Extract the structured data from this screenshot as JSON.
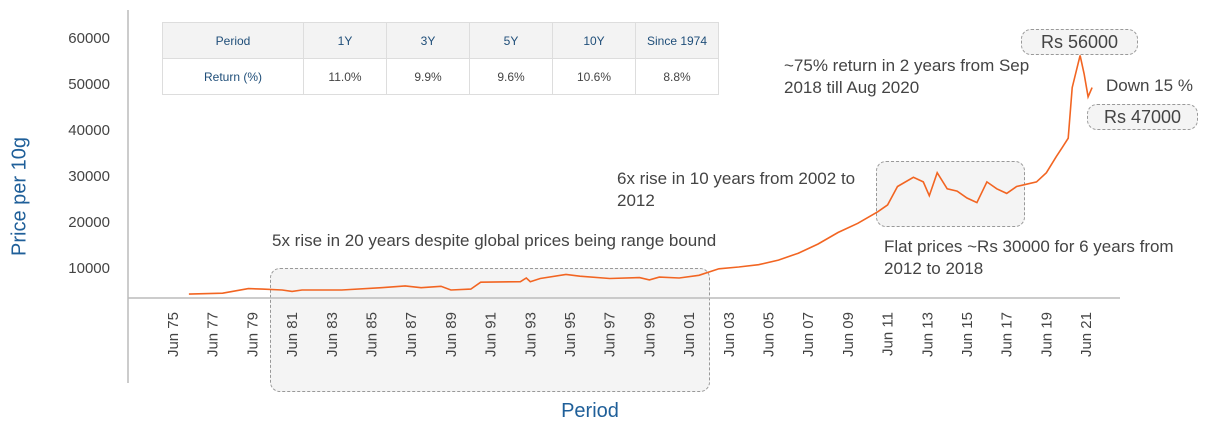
{
  "chart_data": {
    "type": "line",
    "title": "",
    "xlabel": "Period",
    "ylabel": "Price per 10g",
    "ylim": [
      3260,
      63000
    ],
    "yticks": [
      10000,
      20000,
      30000,
      40000,
      50000,
      60000
    ],
    "ytick_labels": [
      "10000",
      "20000",
      "30000",
      "40000",
      "50000",
      "60000"
    ],
    "xtick_labels": [
      "Jun 75",
      "Jun 77",
      "Jun 79",
      "Jun 81",
      "Jun 83",
      "Jun 85",
      "Jun 87",
      "Jun 89",
      "Jun 91",
      "Jun 93",
      "Jun 95",
      "Jun 97",
      "Jun 99",
      "Jun 01",
      "Jun 03",
      "Jun 05",
      "Jun 07",
      "Jun 09",
      "Jun 11",
      "Jun 13",
      "Jun 15",
      "Jun 17",
      "Jun 19",
      "Jun 21"
    ],
    "line_color": "#f26522",
    "grid": false,
    "series": [
      {
        "points": [
          [
            1976.3,
            4100
          ],
          [
            1978,
            4300
          ],
          [
            1979.3,
            5300
          ],
          [
            1980,
            5200
          ],
          [
            1981,
            5000
          ],
          [
            1981.5,
            4700
          ],
          [
            1982,
            5000
          ],
          [
            1984,
            5000
          ],
          [
            1986,
            5500
          ],
          [
            1987.2,
            5900
          ],
          [
            1988,
            5500
          ],
          [
            1989,
            5800
          ],
          [
            1989.5,
            5000
          ],
          [
            1990.5,
            5200
          ],
          [
            1991,
            6700
          ],
          [
            1993,
            6800
          ],
          [
            1993.3,
            7600
          ],
          [
            1993.5,
            6800
          ],
          [
            1994,
            7500
          ],
          [
            1995.3,
            8400
          ],
          [
            1996,
            8000
          ],
          [
            1997.5,
            7500
          ],
          [
            1999,
            7700
          ],
          [
            1999.5,
            7200
          ],
          [
            2000,
            7800
          ],
          [
            2001,
            7600
          ],
          [
            2002,
            8200
          ],
          [
            2003,
            9600
          ],
          [
            2004,
            10000
          ],
          [
            2005,
            10500
          ],
          [
            2006,
            11500
          ],
          [
            2007,
            13000
          ],
          [
            2008,
            15000
          ],
          [
            2009,
            17500
          ],
          [
            2010,
            19500
          ],
          [
            2011,
            22000
          ],
          [
            2011.5,
            23500
          ],
          [
            2012,
            27500
          ],
          [
            2012.8,
            29500
          ],
          [
            2013.3,
            28500
          ],
          [
            2013.6,
            25500
          ],
          [
            2014,
            30500
          ],
          [
            2014.5,
            27000
          ],
          [
            2015,
            26500
          ],
          [
            2015.5,
            25000
          ],
          [
            2016,
            24000
          ],
          [
            2016.5,
            28500
          ],
          [
            2017,
            27000
          ],
          [
            2017.5,
            26000
          ],
          [
            2018,
            27500
          ],
          [
            2018.5,
            28000
          ],
          [
            2019,
            28500
          ],
          [
            2019.5,
            30500
          ],
          [
            2020,
            34000
          ],
          [
            2020.3,
            36000
          ],
          [
            2020.6,
            38000
          ],
          [
            2020.8,
            49000
          ],
          [
            2021.2,
            56000
          ],
          [
            2021.4,
            52000
          ],
          [
            2021.6,
            47000
          ],
          [
            2021.8,
            49000
          ]
        ]
      }
    ],
    "annotations": {
      "range_bound": "5x rise in 20 years despite global prices being range bound",
      "six_x": "6x rise in 10 years from 2002 to 2012",
      "flat": "Flat prices ~Rs 30000 for 6 years from 2012 to 2018",
      "return75": "~75% return in 2 years from Sep 2018 till Aug 2020",
      "peak": "Rs 56000",
      "down": "Down 15 %",
      "current": "Rs 47000"
    },
    "table": {
      "headers": [
        "Period",
        "1Y",
        "3Y",
        "5Y",
        "10Y",
        "Since 1974"
      ],
      "row_label": "Return (%)",
      "values": [
        "11.0%",
        "9.9%",
        "9.6%",
        "10.6%",
        "8.8%"
      ]
    }
  }
}
